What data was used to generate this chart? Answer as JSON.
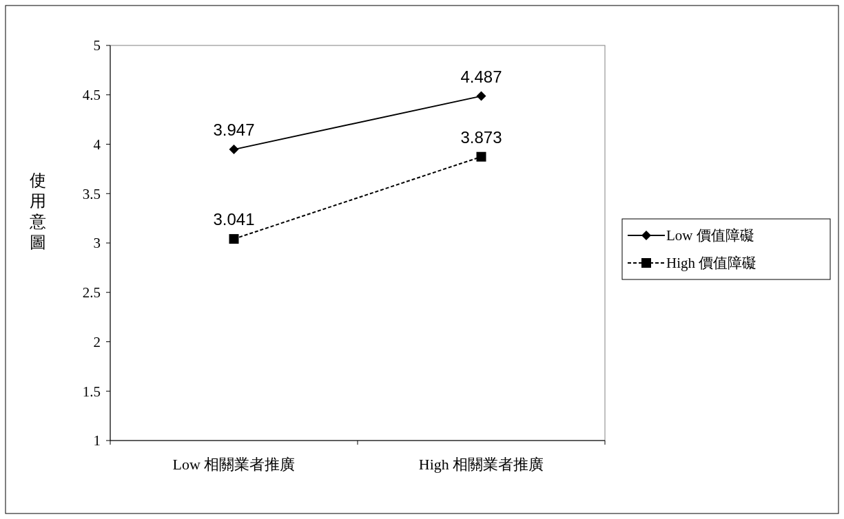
{
  "chart_data": {
    "type": "line",
    "ylabel": "使用意圖",
    "categories": [
      "Low 相關業者推廣",
      "High 相關業者推廣"
    ],
    "series": [
      {
        "name": "Low 價值障礙",
        "color": "#000000",
        "values": [
          3.947,
          4.487
        ],
        "marker": "diamond",
        "line_style": "solid"
      },
      {
        "name": "High 價值障礙",
        "color": "#000000",
        "values": [
          3.041,
          3.873
        ],
        "marker": "square",
        "line_style": "dashed"
      }
    ],
    "ylim": [
      1,
      5
    ],
    "yticks": [
      1,
      1.5,
      2,
      2.5,
      3,
      3.5,
      4,
      4.5,
      5
    ],
    "data_labels": true,
    "grid": false,
    "legend": "right"
  }
}
